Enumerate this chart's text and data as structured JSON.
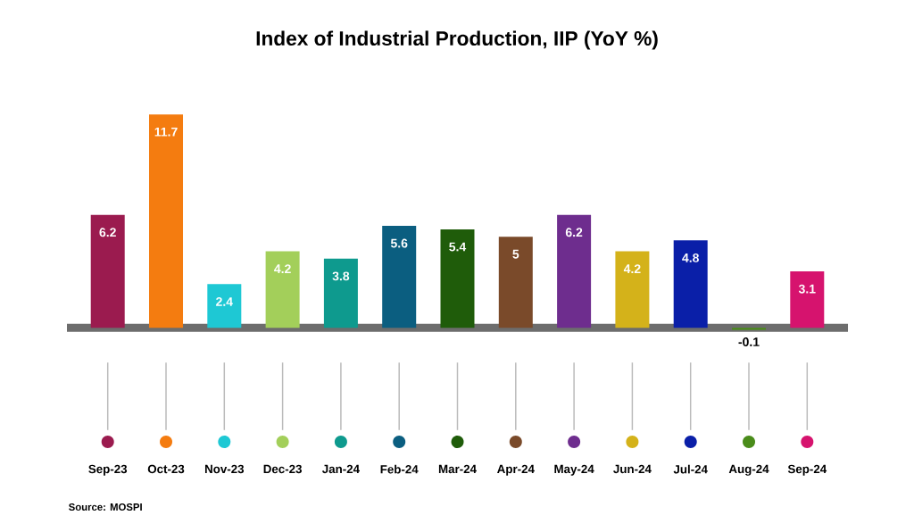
{
  "chart_data": {
    "type": "bar",
    "title": "Index of Industrial Production, IIP (YoY %)",
    "categories": [
      "Sep-23",
      "Oct-23",
      "Nov-23",
      "Dec-23",
      "Jan-24",
      "Feb-24",
      "Mar-24",
      "Apr-24",
      "May-24",
      "Jun-24",
      "Jul-24",
      "Aug-24",
      "Sep-24"
    ],
    "values": [
      6.2,
      11.7,
      2.4,
      4.2,
      3.8,
      5.6,
      5.4,
      5,
      6.2,
      4.2,
      4.8,
      -0.1,
      3.1
    ],
    "colors": [
      "#9b1b4f",
      "#f47c10",
      "#1ec8d4",
      "#a3cf5a",
      "#0e9a8e",
      "#0b5e80",
      "#1f5c0a",
      "#7a4a2a",
      "#6e2d8e",
      "#d4b21a",
      "#0a1fa8",
      "#4a8c1a",
      "#d6136e"
    ],
    "data_labels": true,
    "annotations": [
      "Source: MOSPI"
    ]
  }
}
